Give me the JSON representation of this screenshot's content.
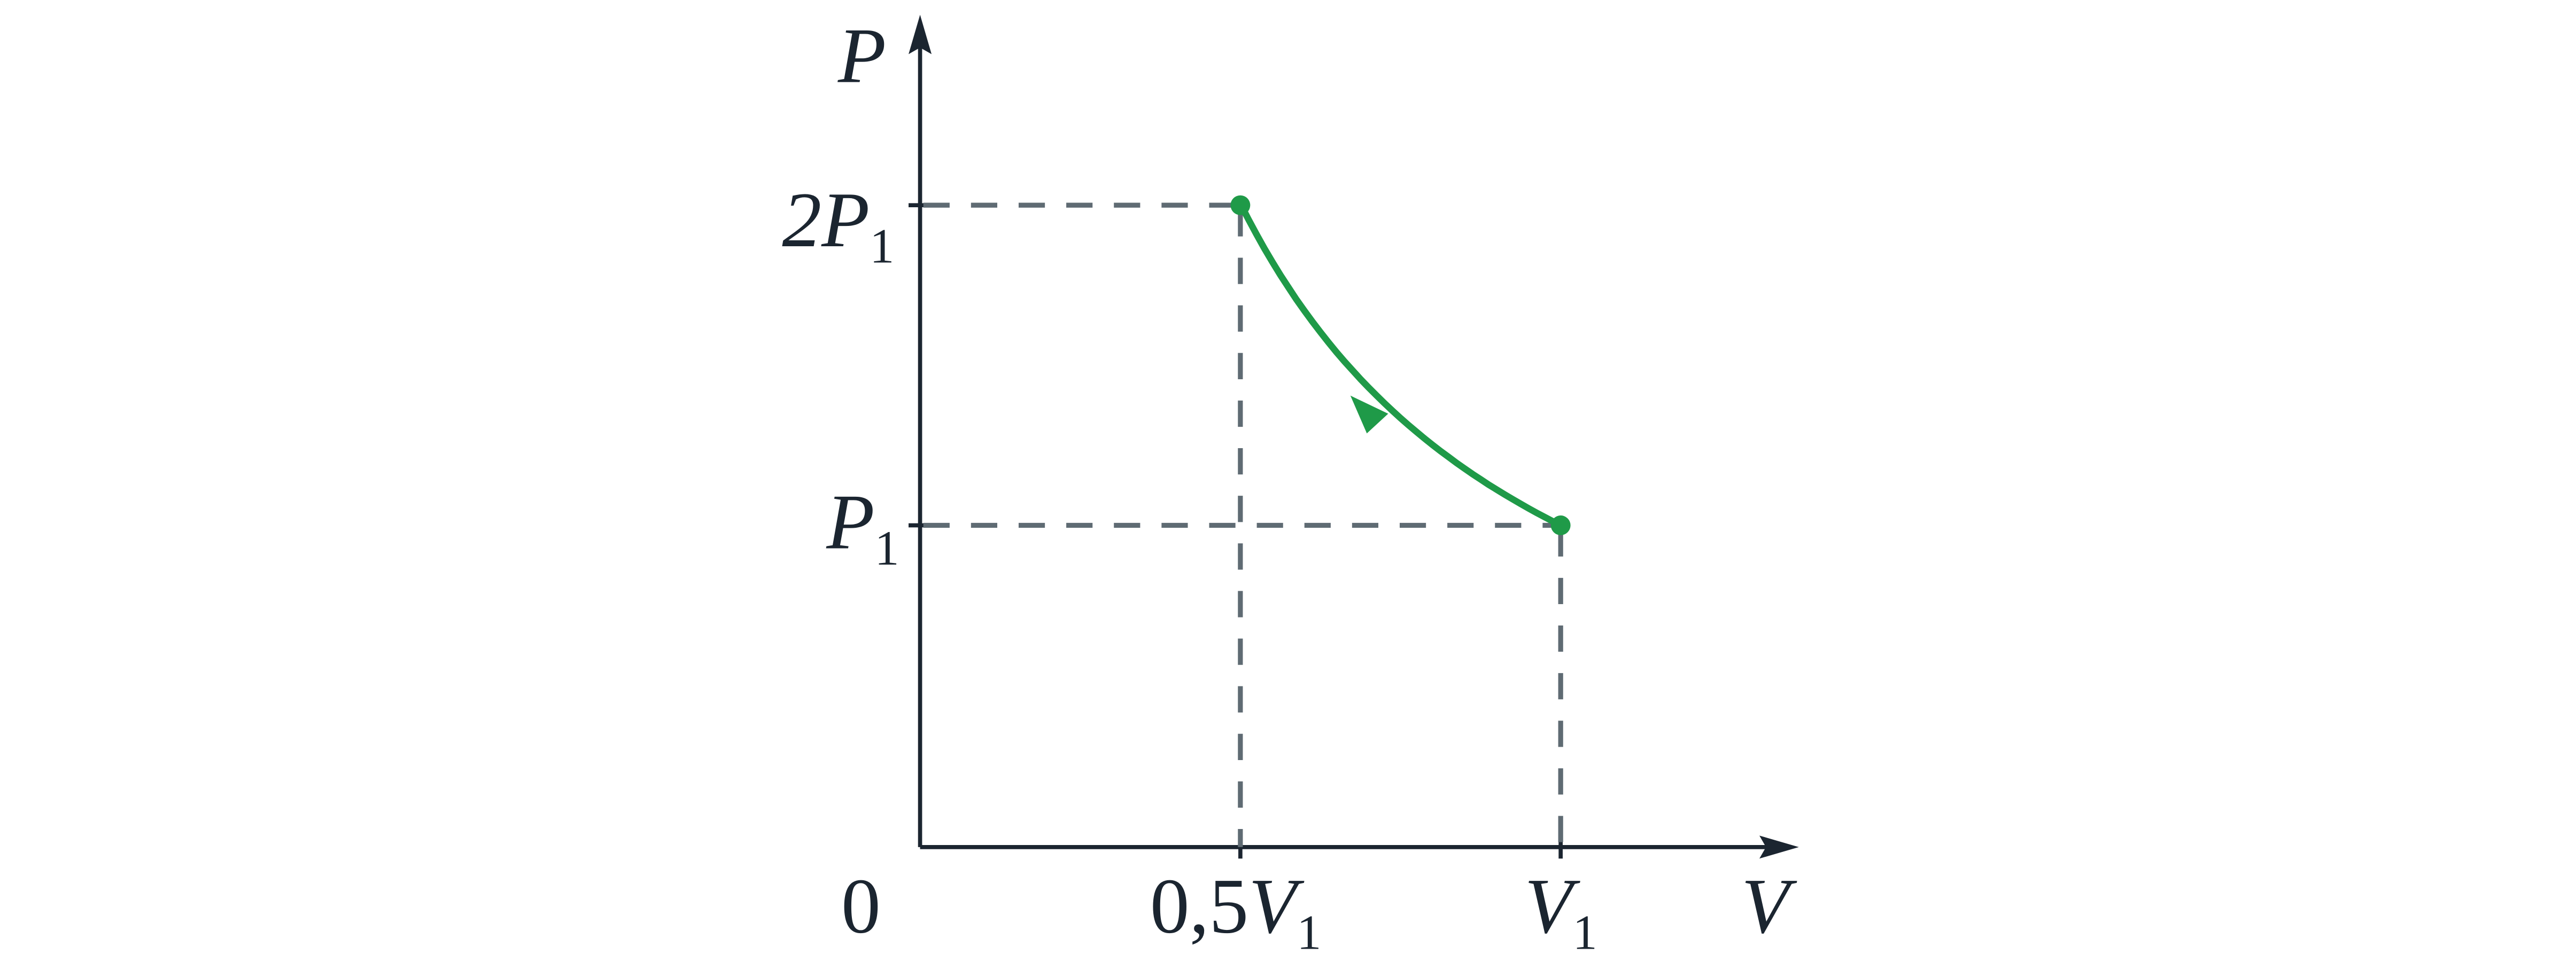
{
  "axes": {
    "y_label": "P",
    "x_label": "V",
    "origin": "0"
  },
  "y_ticks": [
    {
      "coef": "2",
      "symbol": "P",
      "sub": "1"
    },
    {
      "symbol": "P",
      "sub": "1"
    }
  ],
  "x_ticks": [
    {
      "coef": "0,5",
      "symbol": "V",
      "sub": "1"
    },
    {
      "symbol": "V",
      "sub": "1"
    }
  ]
}
